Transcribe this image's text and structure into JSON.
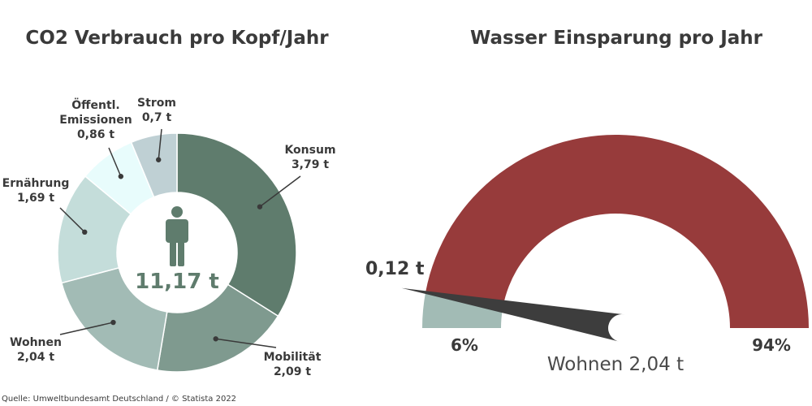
{
  "chart_data": [
    {
      "type": "pie",
      "title": "CO2 Verbrauch pro Kopf/Jahr",
      "center_label": "11,17 t",
      "center_icon": "person-icon",
      "slices": [
        {
          "label": "Konsum",
          "value": 3.79,
          "value_label": "3,79 t",
          "color": "#5f7c6d"
        },
        {
          "label": "Mobilität",
          "value": 2.09,
          "value_label": "2,09 t",
          "color": "#7f9a8f"
        },
        {
          "label": "Wohnen",
          "value": 2.04,
          "value_label": "2,04 t",
          "color": "#a2bbb5"
        },
        {
          "label": "Ernährung",
          "value": 1.69,
          "value_label": "1,69 t",
          "color": "#c4ddda"
        },
        {
          "label": "Öffentl. Emissionen",
          "value": 0.86,
          "value_label": "0,86 t",
          "color": "#e8fcfc"
        },
        {
          "label": "Strom",
          "value": 0.7,
          "value_label": "0,7 t",
          "color": "#bfd0d4"
        }
      ]
    },
    {
      "type": "gauge",
      "title": "Wasser Einsparung pro Jahr",
      "value": 0.12,
      "value_label": "0,12 t",
      "total": 2.04,
      "total_label": "Wohnen 2,04 t",
      "segments": [
        {
          "label": "6%",
          "percent": 6,
          "color": "#a2bbb5"
        },
        {
          "label": "94%",
          "percent": 94,
          "color": "#973b3b"
        }
      ],
      "needle_color": "#3d3d3d"
    }
  ],
  "source": "Quelle: Umweltbundesamt Deutschland / © Statista 2022"
}
